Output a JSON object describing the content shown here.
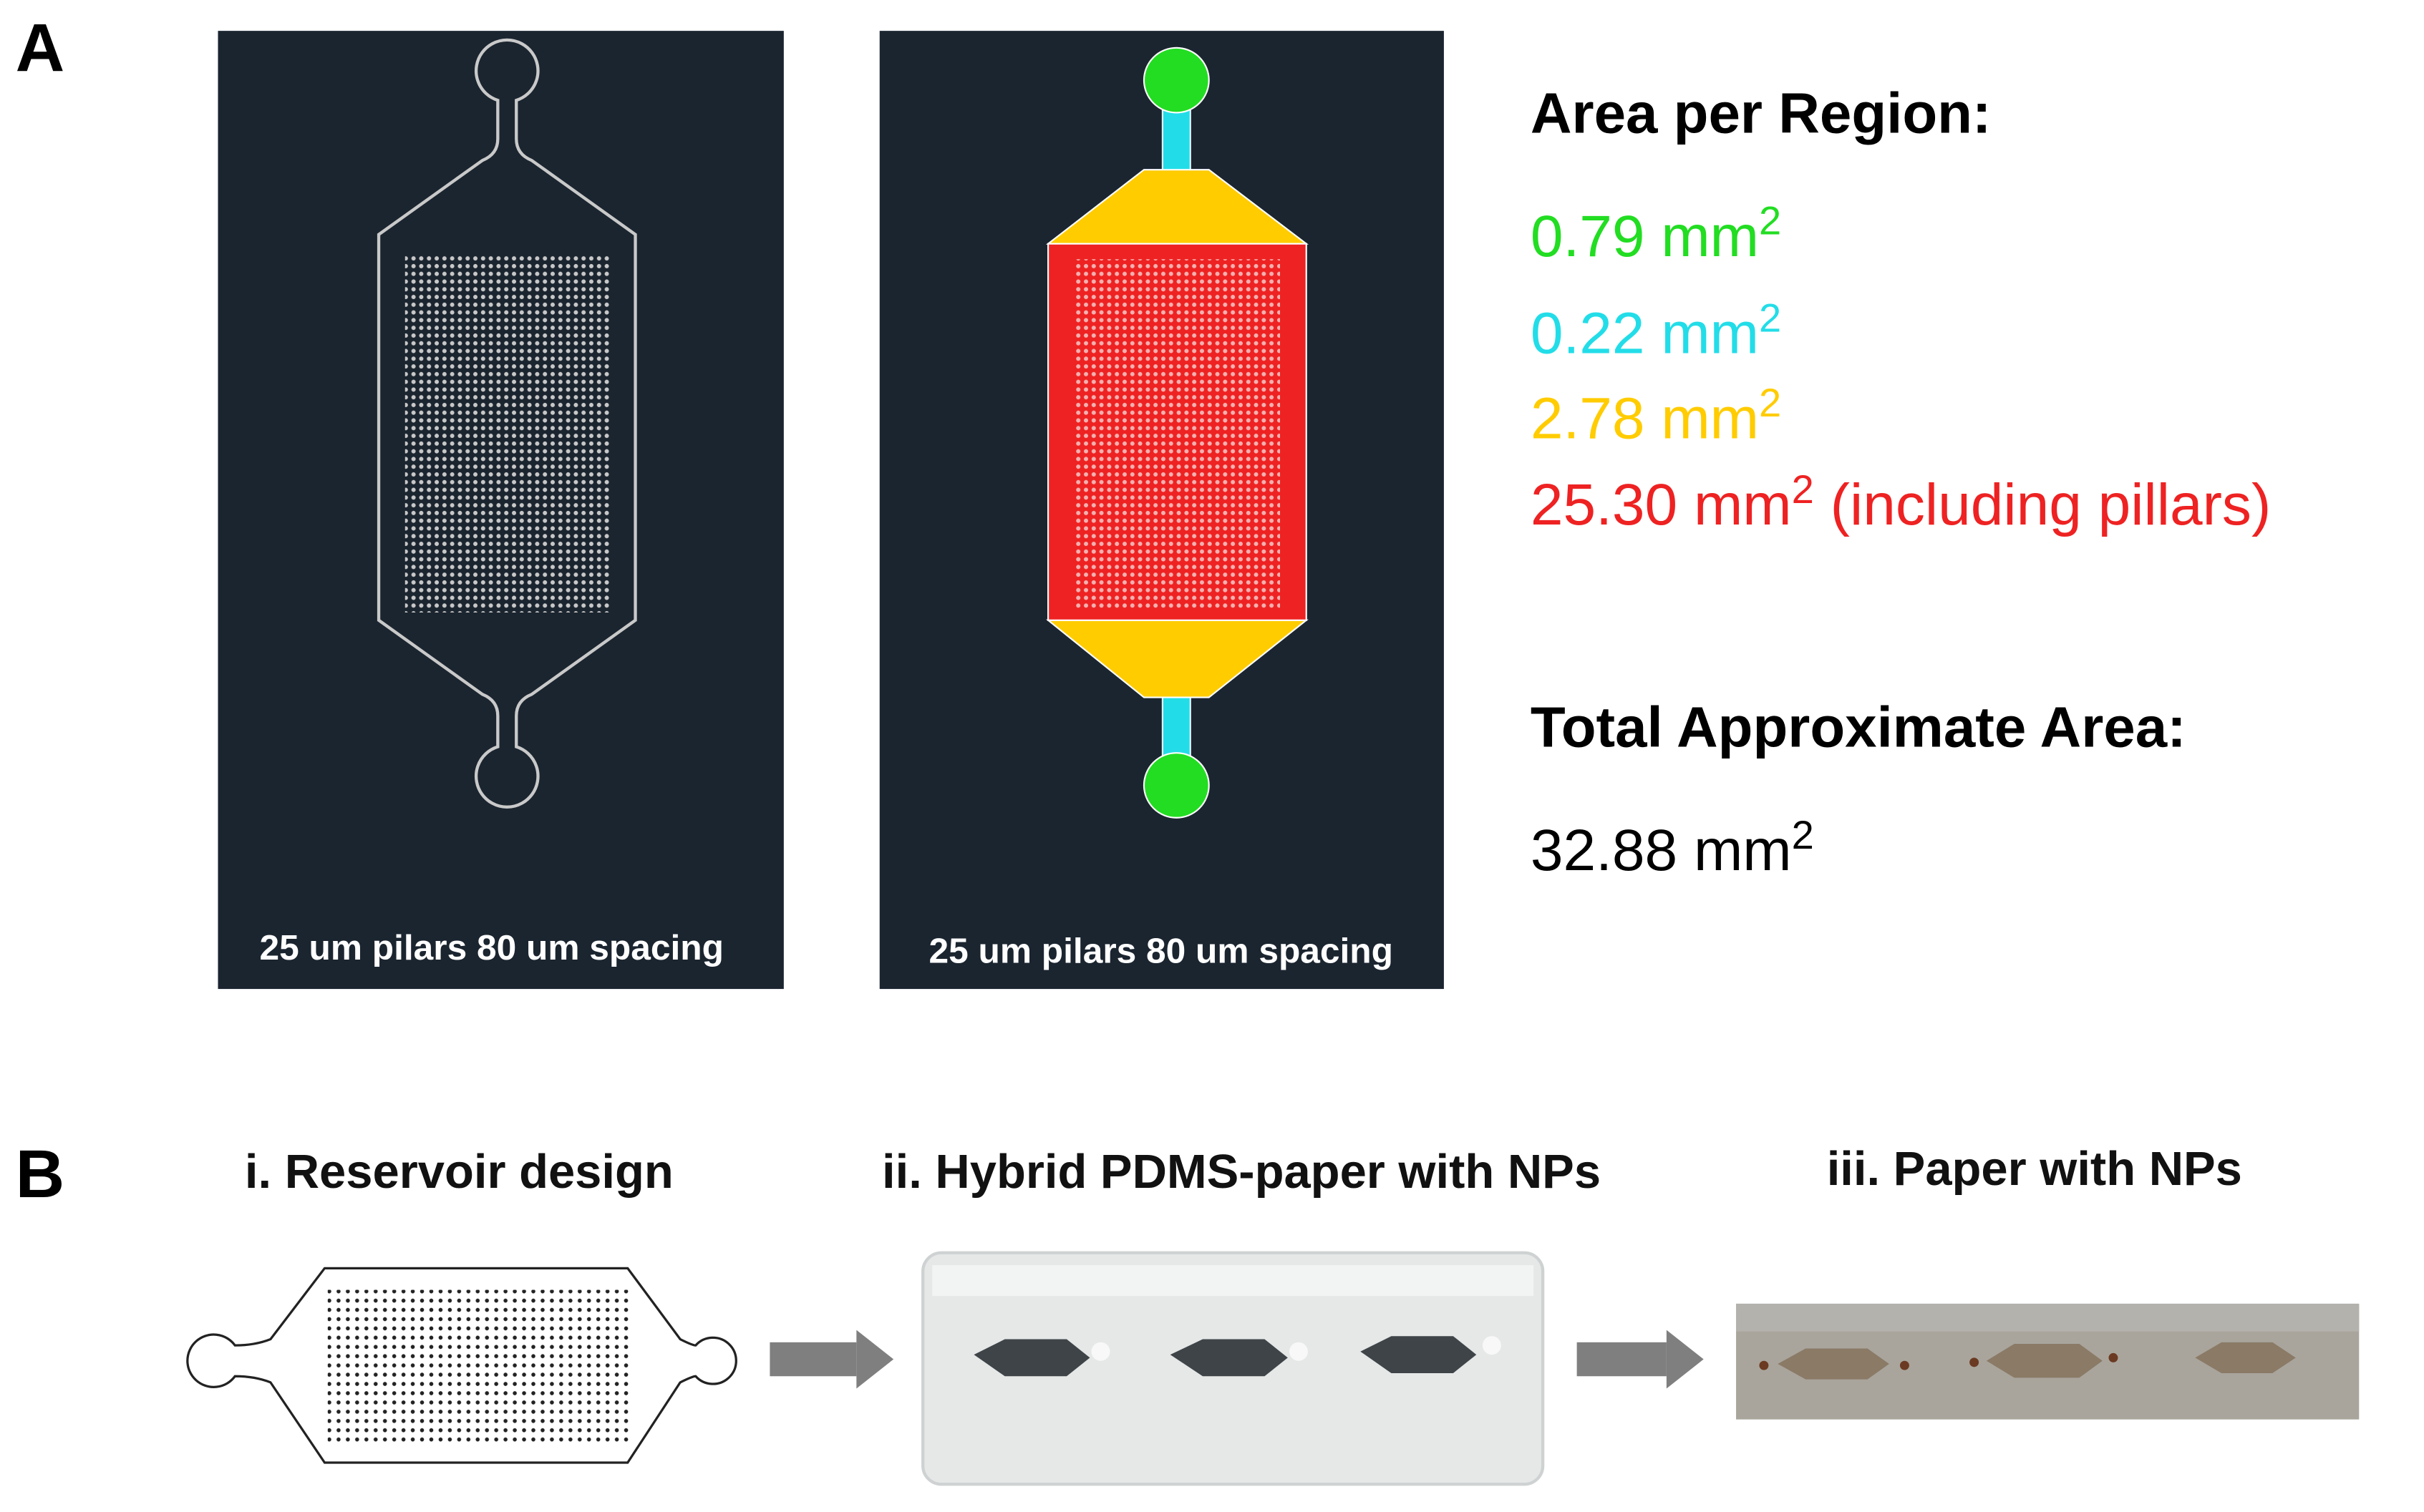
{
  "panel_a": {
    "label": "A",
    "design_captions": [
      "25 um pilars 80 um spacing",
      "25 um pilars 80 um spacing"
    ],
    "area_heading": "Area per Region:",
    "regions": [
      {
        "text": "0.79 mm",
        "superscript": "2",
        "color": "#22dd22"
      },
      {
        "text": "0.22 mm",
        "superscript": "2",
        "color": "#22dde8"
      },
      {
        "text": "2.78 mm",
        "superscript": "2",
        "color": "#ffcc00"
      },
      {
        "text": "25.30 mm",
        "superscript": "2",
        "suffix": " (including pillars)",
        "color": "#ee2222"
      }
    ],
    "total_heading": "Total Approximate Area:",
    "total": {
      "text": "32.88 mm",
      "superscript": "2"
    }
  },
  "panel_b": {
    "label": "B",
    "steps": [
      "i. Reservoir design",
      "ii. Hybrid PDMS-paper with NPs",
      "iii. Paper with NPs"
    ]
  }
}
